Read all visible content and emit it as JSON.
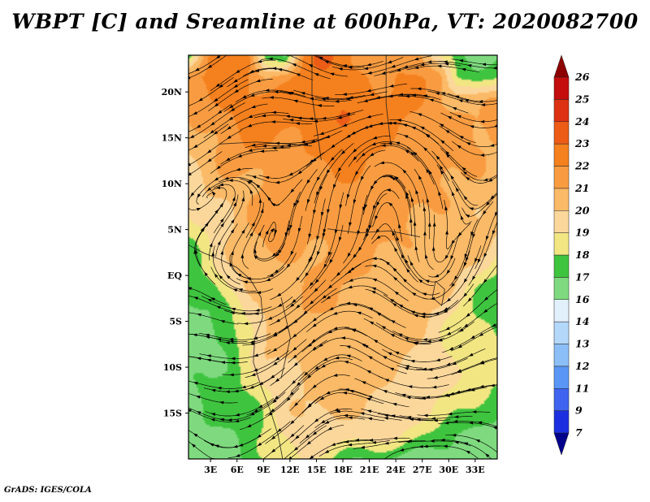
{
  "header": {
    "title": "WBPT [C] and Sreamline at 600hPa, VT: 2020082700"
  },
  "footer": {
    "credit": "GrADS: IGES/COLA"
  },
  "chart_data": {
    "type": "heatmap",
    "subtype": "filled-contour-with-streamlines",
    "title": "WBPT [C] and Sreamline at 600hPa, VT: 2020082700",
    "variable": "WBPT",
    "units": "C",
    "level": "600hPa",
    "valid_time": "2020082700",
    "grid_visible": false,
    "line_color": "#000000",
    "x_axis": {
      "ticks": [
        "3E",
        "6E",
        "9E",
        "12E",
        "15E",
        "18E",
        "21E",
        "24E",
        "27E",
        "30E",
        "33E"
      ],
      "range_deg_east": [
        0.5,
        35.5
      ]
    },
    "y_axis": {
      "ticks": [
        "20N",
        "15N",
        "10N",
        "5N",
        "EQ",
        "5S",
        "10S",
        "15S"
      ],
      "range_deg_north": [
        -20,
        24
      ]
    },
    "colorbar": {
      "orientation": "vertical",
      "position": "right",
      "labels_bottom_to_top": [
        "7",
        "9",
        "11",
        "12",
        "13",
        "14",
        "16",
        "17",
        "18",
        "19",
        "20",
        "21",
        "22",
        "23",
        "24",
        "25",
        "26"
      ],
      "levels": [
        7,
        9,
        11,
        12,
        13,
        14,
        16,
        17,
        18,
        19,
        20,
        21,
        22,
        23,
        24,
        25,
        26
      ],
      "below_color": "#00008b",
      "band_colors_bottom_to_top": [
        "#1c2fe0",
        "#3f64f0",
        "#5a96f5",
        "#8cbff8",
        "#b4d8fa",
        "#e2f0fc",
        "#7fda7f",
        "#3fc43f",
        "#f2e683",
        "#fcd79b",
        "#fbba67",
        "#f99c41",
        "#f5801e",
        "#ec5c17",
        "#dd3113",
        "#c40d0d"
      ],
      "above_color": "#8c0000"
    },
    "field_grid": {
      "cols": 17,
      "rows": 20,
      "values": [
        [
          17.2,
          21.8,
          23.2,
          22.4,
          17.5,
          17.5,
          22.3,
          23.0,
          22.4,
          22.0,
          21.8,
          22.0,
          21.5,
          18.5,
          17.0,
          16.8,
          17.0
        ],
        [
          21.5,
          22.0,
          22.5,
          22.4,
          21.0,
          21.5,
          22.4,
          22.5,
          22.5,
          22.3,
          22.0,
          22.0,
          21.8,
          21.5,
          18.0,
          17.5,
          18.0
        ],
        [
          21.5,
          22.0,
          22.3,
          22.5,
          22.5,
          22.3,
          22.3,
          22.5,
          22.5,
          22.5,
          22.3,
          22.0,
          21.8,
          21.5,
          21.0,
          20.5,
          21.0
        ],
        [
          21.0,
          21.5,
          22.0,
          22.3,
          22.3,
          22.5,
          22.3,
          22.5,
          23.6,
          22.5,
          22.3,
          22.0,
          21.8,
          21.5,
          21.3,
          21.0,
          21.2
        ],
        [
          20.5,
          21.0,
          21.5,
          21.8,
          22.0,
          22.0,
          22.3,
          22.3,
          22.5,
          22.3,
          22.0,
          21.8,
          21.5,
          21.5,
          21.3,
          21.0,
          21.0
        ],
        [
          20.0,
          20.5,
          21.0,
          21.5,
          21.5,
          21.8,
          22.0,
          22.0,
          22.0,
          22.0,
          21.8,
          21.5,
          21.5,
          21.3,
          21.0,
          21.0,
          20.8
        ],
        [
          19.5,
          20.0,
          20.5,
          21.0,
          21.5,
          21.5,
          21.8,
          21.8,
          21.8,
          21.8,
          21.5,
          21.5,
          21.3,
          21.0,
          21.0,
          20.8,
          20.8
        ],
        [
          19.0,
          19.8,
          20.3,
          21.0,
          21.3,
          21.5,
          21.5,
          21.5,
          21.8,
          21.5,
          21.5,
          21.3,
          21.0,
          21.0,
          20.8,
          20.5,
          20.5
        ],
        [
          18.5,
          19.5,
          20.0,
          20.8,
          21.0,
          21.3,
          21.5,
          21.5,
          21.5,
          21.5,
          21.3,
          21.0,
          21.0,
          20.8,
          20.5,
          20.3,
          20.0
        ],
        [
          18.0,
          19.0,
          19.8,
          20.5,
          21.0,
          21.0,
          21.3,
          21.3,
          21.5,
          21.3,
          21.0,
          21.0,
          20.8,
          20.5,
          20.3,
          20.0,
          19.5
        ],
        [
          17.4,
          18.5,
          19.5,
          20.3,
          20.8,
          21.0,
          21.0,
          21.3,
          21.3,
          21.0,
          21.0,
          20.8,
          20.5,
          20.3,
          20.0,
          19.5,
          18.5
        ],
        [
          16.8,
          17.2,
          19.0,
          20.0,
          20.5,
          20.8,
          21.0,
          21.0,
          21.0,
          21.0,
          20.8,
          20.5,
          20.3,
          20.0,
          19.5,
          18.3,
          17.4
        ],
        [
          16.6,
          16.9,
          17.8,
          19.5,
          20.3,
          20.5,
          20.8,
          21.0,
          21.0,
          20.8,
          20.8,
          20.5,
          20.0,
          19.8,
          19.0,
          18.0,
          17.5
        ],
        [
          16.5,
          16.8,
          17.4,
          19.0,
          20.0,
          20.3,
          20.5,
          20.8,
          20.8,
          20.8,
          20.5,
          20.3,
          20.0,
          19.5,
          18.5,
          18.0,
          17.8
        ],
        [
          16.5,
          16.8,
          17.2,
          18.5,
          19.8,
          20.3,
          20.5,
          20.5,
          20.8,
          20.5,
          20.5,
          20.3,
          19.8,
          19.5,
          18.5,
          18.2,
          18.0
        ],
        [
          16.8,
          17.0,
          17.2,
          18.0,
          19.5,
          20.0,
          20.3,
          20.5,
          20.5,
          20.5,
          20.3,
          20.0,
          19.8,
          19.3,
          18.8,
          18.5,
          18.3
        ],
        [
          17.0,
          17.0,
          17.5,
          18.0,
          19.0,
          19.8,
          20.0,
          20.3,
          20.3,
          20.3,
          20.0,
          19.8,
          19.5,
          19.0,
          18.5,
          18.3,
          18.0
        ],
        [
          16.8,
          17.0,
          17.3,
          17.8,
          18.5,
          19.5,
          19.8,
          20.0,
          20.0,
          20.0,
          19.8,
          19.5,
          19.0,
          18.5,
          18.0,
          17.5,
          17.3
        ],
        [
          16.5,
          16.8,
          17.0,
          17.5,
          18.0,
          19.0,
          19.5,
          19.8,
          19.8,
          19.5,
          19.3,
          18.8,
          18.0,
          17.5,
          17.0,
          16.8,
          16.5
        ],
        [
          16.3,
          16.5,
          16.8,
          17.0,
          17.8,
          18.8,
          19.2,
          18.8,
          17.5,
          17.0,
          16.8,
          16.6,
          16.5,
          16.6,
          16.5,
          16.3,
          16.2
        ]
      ]
    },
    "borders_normalized": [
      [
        [
          0.0,
          0.47
        ],
        [
          0.05,
          0.49
        ],
        [
          0.1,
          0.505
        ],
        [
          0.155,
          0.525
        ],
        [
          0.2,
          0.555
        ],
        [
          0.235,
          0.6
        ],
        [
          0.24,
          0.65
        ],
        [
          0.215,
          0.7
        ],
        [
          0.21,
          0.76
        ],
        [
          0.235,
          0.82
        ],
        [
          0.265,
          0.88
        ],
        [
          0.29,
          0.94
        ],
        [
          0.305,
          1.0
        ]
      ],
      [
        [
          0.4,
          0.0
        ],
        [
          0.4,
          0.1
        ],
        [
          0.415,
          0.18
        ],
        [
          0.43,
          0.26
        ]
      ],
      [
        [
          0.64,
          0.0
        ],
        [
          0.64,
          0.12
        ],
        [
          0.655,
          0.22
        ]
      ],
      [
        [
          0.1,
          0.22
        ],
        [
          0.22,
          0.215
        ],
        [
          0.33,
          0.22
        ],
        [
          0.4,
          0.225
        ]
      ],
      [
        [
          0.45,
          0.43
        ],
        [
          0.55,
          0.44
        ],
        [
          0.65,
          0.435
        ],
        [
          0.75,
          0.45
        ]
      ],
      [
        [
          0.8,
          0.56
        ],
        [
          0.83,
          0.58
        ],
        [
          0.82,
          0.62
        ],
        [
          0.79,
          0.6
        ],
        [
          0.8,
          0.56
        ]
      ],
      [
        [
          0.3,
          0.6
        ],
        [
          0.33,
          0.7
        ],
        [
          0.3,
          0.8
        ]
      ]
    ],
    "streamline_model": {
      "base": [
        0.7,
        0.5,
        9.0,
        0.8
      ],
      "wave": [
        0.45,
        12.0,
        5.0,
        0.25,
        7.0,
        9.0
      ],
      "vortex_scale": 0.045,
      "vortices": [
        {
          "x": 0.13,
          "y": 0.54,
          "s": 2.0
        },
        {
          "x": 0.5,
          "y": 0.7,
          "s": -1.6
        },
        {
          "x": 0.8,
          "y": 0.6,
          "s": 1.4
        },
        {
          "x": 0.33,
          "y": 0.9,
          "s": 1.3
        },
        {
          "x": 0.68,
          "y": 0.92,
          "s": -1.2
        },
        {
          "x": 0.6,
          "y": 0.22,
          "s": -0.7
        }
      ],
      "seeds": [
        16,
        15
      ],
      "step": 1.5,
      "steps": 30,
      "arrow_spacing": 30
    }
  }
}
